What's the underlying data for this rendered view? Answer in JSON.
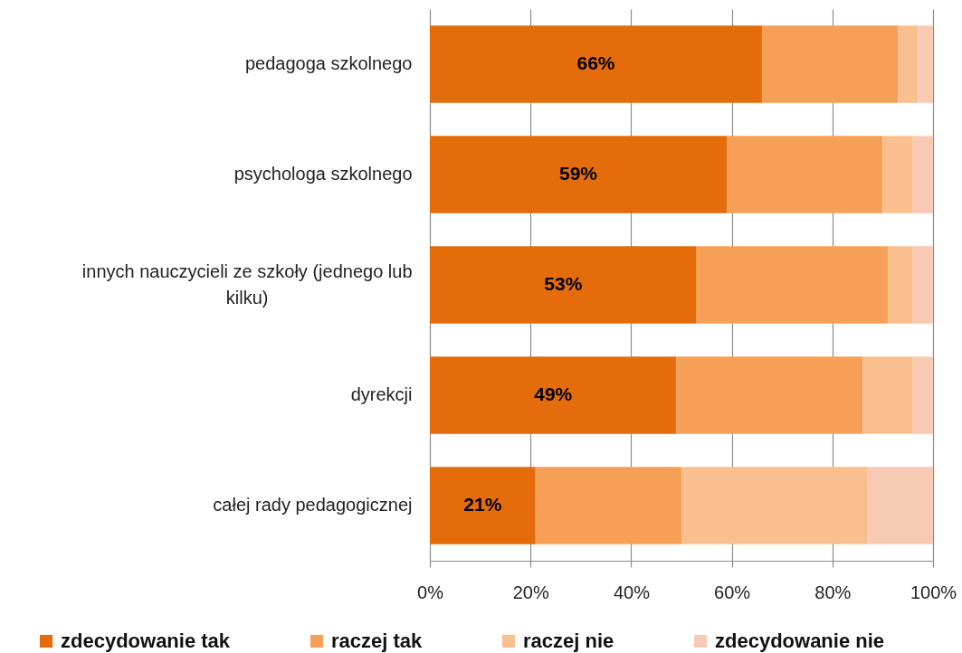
{
  "chart_data": {
    "type": "bar",
    "orientation": "horizontal",
    "stacked": true,
    "categories": [
      "pedagoga szkolnego",
      "psychologa szkolnego",
      "innych nauczycieli ze szkoły (jednego lub kilku)",
      "dyrekcji",
      "całej rady pedagogicznej"
    ],
    "series": [
      {
        "name": "zdecydowanie tak",
        "color": "#e46c0a",
        "values": [
          66,
          59,
          53,
          49,
          21
        ],
        "value_labels": [
          "66%",
          "59%",
          "53%",
          "49%",
          "21%"
        ]
      },
      {
        "name": "raczej tak",
        "color": "#f6a057",
        "values": [
          27,
          31,
          38,
          37,
          29
        ]
      },
      {
        "name": "raczej nie",
        "color": "#f9bf8f",
        "values": [
          4,
          6,
          5,
          10,
          37
        ]
      },
      {
        "name": "zdecydowanie nie",
        "color": "#f8cab3",
        "values": [
          3,
          4,
          4,
          4,
          13
        ]
      }
    ],
    "xlim": [
      0,
      100
    ],
    "xticks": [
      {
        "value": 0,
        "label": "0%"
      },
      {
        "value": 20,
        "label": "20%"
      },
      {
        "value": 40,
        "label": "40%"
      },
      {
        "value": 60,
        "label": "60%"
      },
      {
        "value": 80,
        "label": "80%"
      },
      {
        "value": 100,
        "label": "100%"
      }
    ],
    "grid": "x",
    "legend": "bottom"
  }
}
